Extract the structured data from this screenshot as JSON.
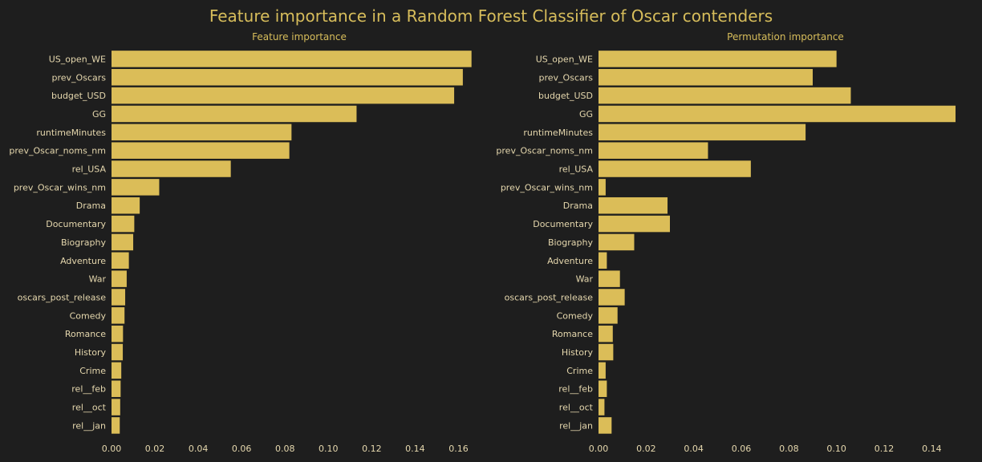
{
  "title": "Feature importance in a Random Forest Classifier of Oscar contenders",
  "colors": {
    "background": "#1e1e1e",
    "bar": "#dbbd58",
    "text": "#e5d7ad",
    "title": "#d7bd5b"
  },
  "chart_data": [
    {
      "type": "bar",
      "orientation": "horizontal",
      "title": "Feature importance",
      "xlim": [
        0,
        0.165
      ],
      "xticks": [
        "0.00",
        "0.02",
        "0.04",
        "0.06",
        "0.08",
        "0.10",
        "0.12",
        "0.14",
        "0.16"
      ],
      "categories": [
        "US_open_WE",
        "prev_Oscars",
        "budget_USD",
        "GG",
        "runtimeMinutes",
        "prev_Oscar_noms_nm",
        "rel_USA",
        "prev_Oscar_wins_nm",
        "Drama",
        "Documentary",
        "Biography",
        "Adventure",
        "War",
        "oscars_post_release",
        "Comedy",
        "Romance",
        "History",
        "Crime",
        "rel__feb",
        "rel__oct",
        "rel__jan"
      ],
      "values": [
        0.166,
        0.162,
        0.158,
        0.113,
        0.083,
        0.082,
        0.055,
        0.022,
        0.013,
        0.0105,
        0.01,
        0.008,
        0.007,
        0.0063,
        0.006,
        0.0053,
        0.0052,
        0.0045,
        0.0042,
        0.004,
        0.0038
      ]
    },
    {
      "type": "bar",
      "orientation": "horizontal",
      "title": "Permutation importance",
      "xlim": [
        0,
        0.15
      ],
      "xticks": [
        "0.00",
        "0.02",
        "0.04",
        "0.06",
        "0.08",
        "0.10",
        "0.12",
        "0.14"
      ],
      "categories": [
        "US_open_WE",
        "prev_Oscars",
        "budget_USD",
        "GG",
        "runtimeMinutes",
        "prev_Oscar_noms_nm",
        "rel_USA",
        "prev_Oscar_wins_nm",
        "Drama",
        "Documentary",
        "Biography",
        "Adventure",
        "War",
        "oscars_post_release",
        "Comedy",
        "Romance",
        "History",
        "Crime",
        "rel__feb",
        "rel__oct",
        "rel__jan"
      ],
      "values": [
        0.1,
        0.09,
        0.106,
        0.15,
        0.087,
        0.046,
        0.064,
        0.003,
        0.029,
        0.03,
        0.015,
        0.0035,
        0.009,
        0.011,
        0.008,
        0.006,
        0.0062,
        0.003,
        0.0035,
        0.0025,
        0.0055
      ]
    }
  ]
}
